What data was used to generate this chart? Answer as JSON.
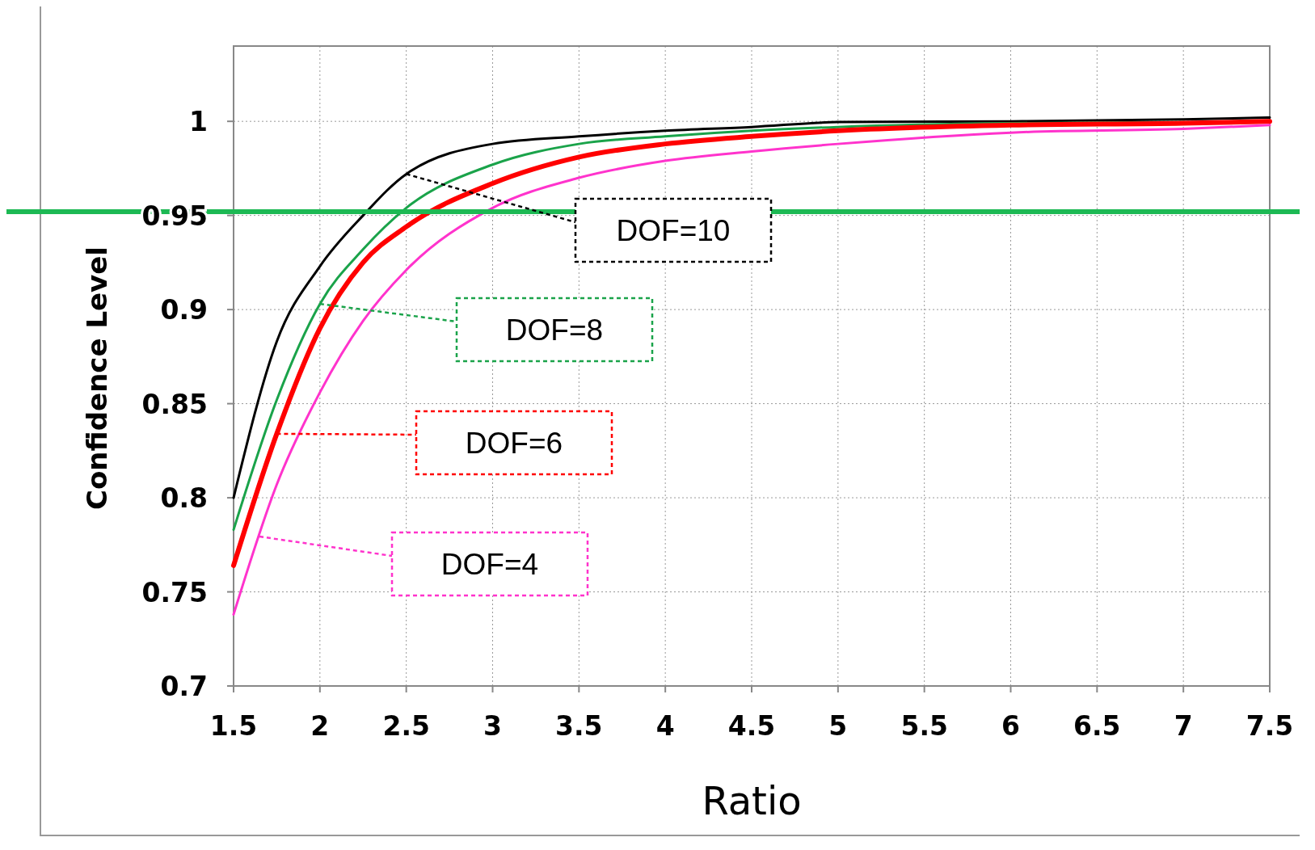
{
  "chart_data": {
    "type": "line",
    "xlabel": "Ratio",
    "ylabel": "Confidence Level",
    "x": [
      1.5,
      1.75,
      2,
      2.25,
      2.5,
      3,
      3.5,
      4,
      4.5,
      5,
      6,
      7,
      7.5
    ],
    "series": [
      {
        "name": "DOF=10",
        "color": "#000000",
        "values": [
          0.8,
          0.883,
          0.923,
          0.95,
          0.972,
          0.988,
          0.992,
          0.995,
          0.997,
          0.9996,
          1.0,
          1.001,
          1.002
        ]
      },
      {
        "name": "DOF=8",
        "color": "#1aa34a",
        "values": [
          0.783,
          0.852,
          0.903,
          0.932,
          0.954,
          0.977,
          0.988,
          0.992,
          0.995,
          0.997,
          0.999,
          0.9995,
          null
        ]
      },
      {
        "name": "DOF=6",
        "color": "#ff0000",
        "values": [
          0.764,
          0.834,
          0.89,
          0.925,
          0.944,
          0.967,
          0.981,
          0.988,
          0.992,
          0.995,
          0.998,
          0.999,
          1.0
        ]
      },
      {
        "name": "DOF=4",
        "color": "#ff33cc",
        "values": [
          0.738,
          0.807,
          0.856,
          0.894,
          0.921,
          0.954,
          0.97,
          0.979,
          0.984,
          0.988,
          0.994,
          0.996,
          0.998
        ]
      }
    ],
    "xlim": [
      1.5,
      7.5
    ],
    "xticks": [
      1.5,
      2,
      2.5,
      3,
      3.5,
      4,
      4.5,
      5,
      5.5,
      6,
      6.5,
      7,
      7.5
    ],
    "ylim": [
      0.7,
      1.04
    ],
    "yticks": [
      0.7,
      0.75,
      0.8,
      0.85,
      0.9,
      0.95,
      1
    ],
    "ref_lines": [
      {
        "axis": "y",
        "value": 0.952,
        "color": "#1db954"
      }
    ],
    "grid": true,
    "legend": "left",
    "marker": "none",
    "line_style": "solid"
  }
}
